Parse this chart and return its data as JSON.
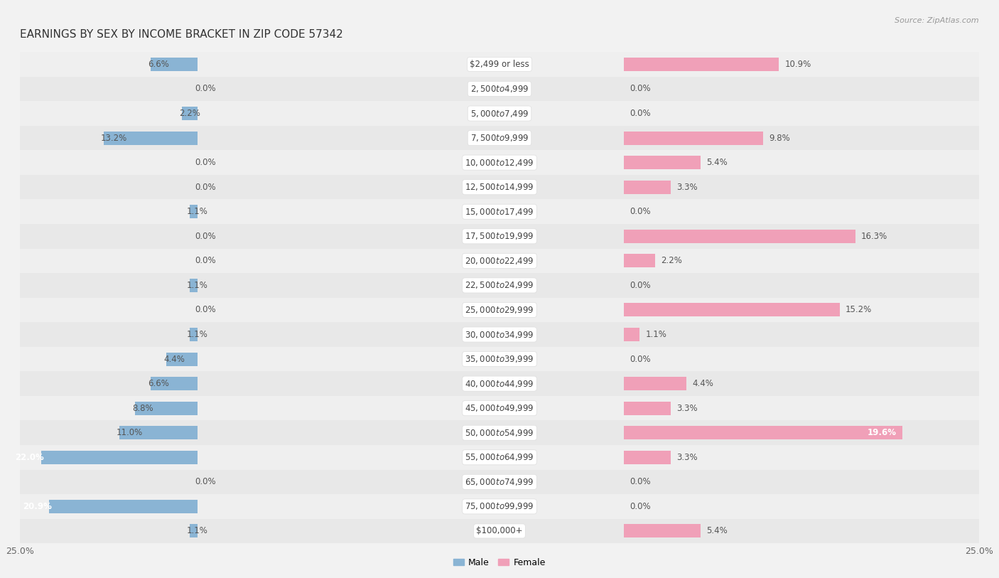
{
  "title": "EARNINGS BY SEX BY INCOME BRACKET IN ZIP CODE 57342",
  "source": "Source: ZipAtlas.com",
  "categories": [
    "$2,499 or less",
    "$2,500 to $4,999",
    "$5,000 to $7,499",
    "$7,500 to $9,999",
    "$10,000 to $12,499",
    "$12,500 to $14,999",
    "$15,000 to $17,499",
    "$17,500 to $19,999",
    "$20,000 to $22,499",
    "$22,500 to $24,999",
    "$25,000 to $29,999",
    "$30,000 to $34,999",
    "$35,000 to $39,999",
    "$40,000 to $44,999",
    "$45,000 to $49,999",
    "$50,000 to $54,999",
    "$55,000 to $64,999",
    "$65,000 to $74,999",
    "$75,000 to $99,999",
    "$100,000+"
  ],
  "male_values": [
    6.6,
    0.0,
    2.2,
    13.2,
    0.0,
    0.0,
    1.1,
    0.0,
    0.0,
    1.1,
    0.0,
    1.1,
    4.4,
    6.6,
    8.8,
    11.0,
    22.0,
    0.0,
    20.9,
    1.1
  ],
  "female_values": [
    10.9,
    0.0,
    0.0,
    9.8,
    5.4,
    3.3,
    0.0,
    16.3,
    2.2,
    0.0,
    15.2,
    1.1,
    0.0,
    4.4,
    3.3,
    19.6,
    3.3,
    0.0,
    0.0,
    5.4
  ],
  "male_color": "#8ab4d4",
  "female_color": "#f0a0b8",
  "male_label": "Male",
  "female_label": "Female",
  "bg_color": "#f2f2f2",
  "row_colors": [
    "#efefef",
    "#e8e8e8"
  ],
  "max_value": 25.0,
  "label_fontsize": 8.5,
  "value_fontsize": 8.5,
  "title_fontsize": 11,
  "source_fontsize": 8,
  "cat_label_fontsize": 8.5
}
